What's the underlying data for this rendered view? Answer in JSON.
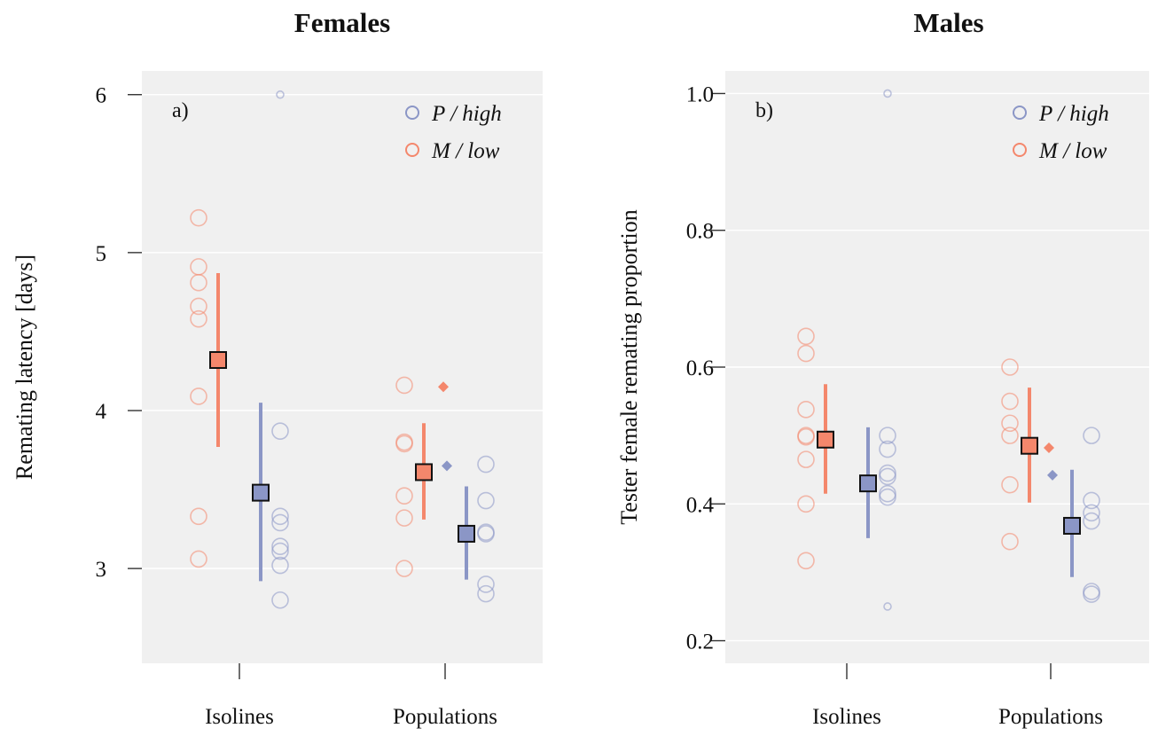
{
  "colors": {
    "high": "#8b96c6",
    "low": "#f4876c",
    "panel_bg": "#f0f0f0",
    "grid": "#ffffff"
  },
  "legend": {
    "high": {
      "italic_letter": "P",
      "rest": " / high"
    },
    "low": {
      "italic_letter": "M",
      "rest": " / low"
    }
  },
  "chart_data": [
    {
      "type": "scatter",
      "title": "Females",
      "panel_label": "a)",
      "ylabel": "Remating latency [days]",
      "xlabel": "",
      "ylim": [
        2.4,
        6.15
      ],
      "yticks": [
        3,
        4,
        5,
        6
      ],
      "ytick_labels": [
        "3",
        "4",
        "5",
        "6"
      ],
      "categories": [
        "Isolines",
        "Populations"
      ],
      "grid": true,
      "legend_position": "top-right",
      "series": [
        {
          "name": "P / high",
          "key": "high",
          "means": [
            3.48,
            3.22
          ],
          "ci_low": [
            2.92,
            2.93
          ],
          "ci_high": [
            4.05,
            3.52
          ],
          "diamond": [
            null,
            3.65
          ],
          "points": [
            [
              6.0,
              3.87,
              3.33,
              3.29,
              3.14,
              3.11,
              3.02,
              2.8
            ],
            [
              3.66,
              3.43,
              3.23,
              3.22,
              2.9,
              2.84
            ]
          ]
        },
        {
          "name": "M / low",
          "key": "low",
          "means": [
            4.32,
            3.61
          ],
          "ci_low": [
            3.77,
            3.31
          ],
          "ci_high": [
            4.87,
            3.92
          ],
          "diamond": [
            null,
            4.15
          ],
          "points": [
            [
              5.22,
              4.91,
              4.81,
              4.66,
              4.58,
              4.09,
              3.33,
              3.06
            ],
            [
              4.16,
              3.8,
              3.79,
              3.46,
              3.32,
              3.0
            ]
          ]
        }
      ]
    },
    {
      "type": "scatter",
      "title": "Males",
      "panel_label": "b)",
      "ylabel": "Tester female remating proportion",
      "xlabel": "",
      "ylim": [
        0.167,
        1.033
      ],
      "yticks": [
        0.2,
        0.4,
        0.6,
        0.8,
        1.0
      ],
      "ytick_labels": [
        "0.2",
        "0.4",
        "0.6",
        "0.8",
        "1.0"
      ],
      "categories": [
        "Isolines",
        "Populations"
      ],
      "grid": true,
      "legend_position": "top-right",
      "series": [
        {
          "name": "P / high",
          "key": "high",
          "means": [
            0.43,
            0.368
          ],
          "ci_low": [
            0.35,
            0.293
          ],
          "ci_high": [
            0.512,
            0.45
          ],
          "diamond": [
            null,
            0.442
          ],
          "points": [
            [
              1.0,
              0.5,
              0.48,
              0.445,
              0.44,
              0.415,
              0.41,
              0.25
            ],
            [
              0.5,
              0.405,
              0.387,
              0.375,
              0.272,
              0.268
            ]
          ]
        },
        {
          "name": "M / low",
          "key": "low",
          "means": [
            0.494,
            0.485
          ],
          "ci_low": [
            0.415,
            0.402
          ],
          "ci_high": [
            0.575,
            0.57
          ],
          "diamond": [
            null,
            0.482
          ],
          "points": [
            [
              0.645,
              0.62,
              0.538,
              0.5,
              0.498,
              0.465,
              0.4,
              0.317
            ],
            [
              0.6,
              0.55,
              0.518,
              0.5,
              0.428,
              0.345
            ]
          ]
        }
      ]
    }
  ]
}
